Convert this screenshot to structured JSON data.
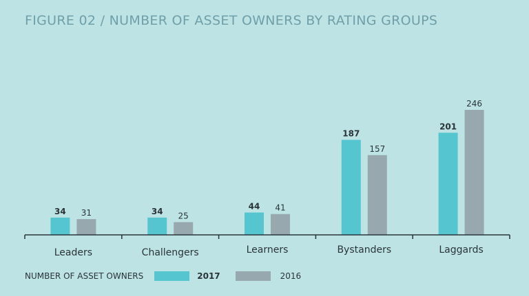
{
  "chart_data": {
    "type": "bar",
    "title": "FIGURE 02 / NUMBER OF ASSET OWNERS BY RATING GROUPS",
    "categories": [
      "Leaders",
      "Challengers",
      "Learners",
      "Bystanders",
      "Laggards"
    ],
    "series": [
      {
        "name": "2017",
        "values": [
          34,
          34,
          44,
          187,
          201
        ],
        "color": "#55c6d0"
      },
      {
        "name": "2016",
        "values": [
          31,
          25,
          41,
          157,
          246
        ],
        "color": "#97a9ae"
      }
    ],
    "xlabel": "",
    "ylabel": "",
    "ylim": [
      0,
      246
    ],
    "legend_title": "NUMBER OF ASSET OWNERS",
    "grid": false,
    "legend_position": "bottom-left"
  }
}
